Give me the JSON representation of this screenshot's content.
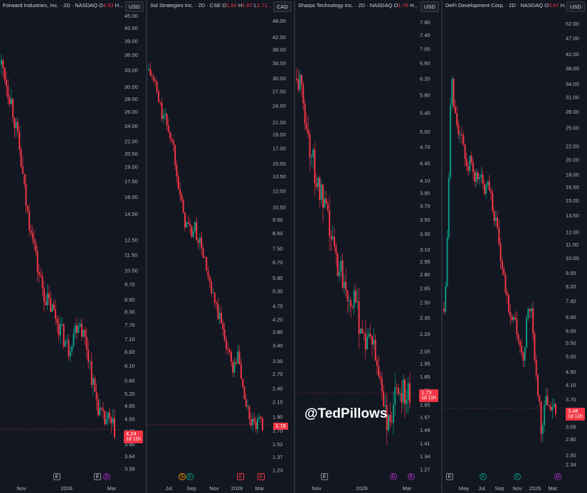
{
  "watermark": "@TedPillows",
  "colors": {
    "up": "#089981",
    "down": "#f23645",
    "bg": "#131722",
    "axis_text": "#b2b5be"
  },
  "chart_data": [
    {
      "type": "candlestick",
      "title": "Forward Industries, Inc. · 2D · NASDAQ",
      "ohlc_header": {
        "o_label": "O",
        "o_value": "4.53",
        "h_label": "H..."
      },
      "currency": "USD",
      "scale": "log",
      "ylim": [
        3.3,
        45
      ],
      "y_ticks": [
        "45.00",
        "42.00",
        "39.00",
        "36.00",
        "33.00",
        "30.00",
        "28.00",
        "26.00",
        "24.00",
        "22.00",
        "20.50",
        "19.00",
        "17.50",
        "16.00",
        "14.50",
        "12.50",
        "11.50",
        "10.50",
        "9.70",
        "8.90",
        "8.30",
        "7.70",
        "7.10",
        "6.60",
        "6.10",
        "5.60",
        "5.20",
        "4.85",
        "4.50",
        "4.20",
        "3.90",
        "3.64",
        "3.39"
      ],
      "x_ticks": [
        "Nov",
        "2026",
        "Mar"
      ],
      "last_price": "4.24",
      "countdown": "1d 11h",
      "events": [
        "E",
        "E",
        "D"
      ],
      "close_path": [
        [
          0,
          34
        ],
        [
          0.02,
          33
        ],
        [
          0.05,
          30
        ],
        [
          0.08,
          28
        ],
        [
          0.11,
          25
        ],
        [
          0.14,
          22
        ],
        [
          0.17,
          19
        ],
        [
          0.2,
          16
        ],
        [
          0.23,
          14
        ],
        [
          0.26,
          13.5
        ],
        [
          0.3,
          10.8
        ],
        [
          0.33,
          10
        ],
        [
          0.36,
          9.2
        ],
        [
          0.39,
          8.8
        ],
        [
          0.42,
          8.5
        ],
        [
          0.45,
          8.2
        ],
        [
          0.48,
          7.8
        ],
        [
          0.51,
          7.4
        ],
        [
          0.54,
          7.0
        ],
        [
          0.57,
          6.7
        ],
        [
          0.6,
          7.2
        ],
        [
          0.63,
          7.6
        ],
        [
          0.66,
          8.0
        ],
        [
          0.69,
          7.4
        ],
        [
          0.72,
          6.9
        ],
        [
          0.75,
          6.2
        ],
        [
          0.78,
          5.4
        ],
        [
          0.81,
          5.0
        ],
        [
          0.84,
          4.6
        ],
        [
          0.87,
          4.4
        ],
        [
          0.9,
          4.5
        ],
        [
          0.93,
          4.3
        ],
        [
          0.96,
          4.24
        ]
      ]
    },
    {
      "type": "candlestick",
      "title": "Sol Strategies Inc. · 2D · CSE",
      "ohlc_header": {
        "o_label": "O",
        "o_value": "1.82",
        "h_label": "H",
        "h_value": "1.87",
        "l_label": "L",
        "l_value": "1.71..."
      },
      "currency": "CAD",
      "scale": "log",
      "ylim": [
        1.2,
        50
      ],
      "y_ticks": [
        "48.00",
        "42.00",
        "38.00",
        "34.00",
        "30.00",
        "27.00",
        "24.00",
        "21.00",
        "19.00",
        "17.00",
        "15.00",
        "13.50",
        "12.00",
        "10.50",
        "9.50",
        "8.50",
        "7.50",
        "6.70",
        "5.90",
        "5.30",
        "4.70",
        "4.20",
        "3.80",
        "3.40",
        "3.00",
        "2.70",
        "2.40",
        "2.15",
        "1.90",
        "1.70",
        "1.52",
        "1.37",
        "1.23"
      ],
      "x_ticks": [
        "Jul",
        "Sep",
        "Nov",
        "2026",
        "Mar"
      ],
      "last_price": "1.78",
      "events": [
        "S",
        "E",
        "E",
        "E"
      ],
      "close_path": [
        [
          0,
          32
        ],
        [
          0.03,
          30
        ],
        [
          0.06,
          28
        ],
        [
          0.09,
          24
        ],
        [
          0.12,
          22
        ],
        [
          0.15,
          21
        ],
        [
          0.18,
          19
        ],
        [
          0.21,
          17
        ],
        [
          0.24,
          14
        ],
        [
          0.27,
          11
        ],
        [
          0.3,
          9.5
        ],
        [
          0.33,
          9
        ],
        [
          0.36,
          8.5
        ],
        [
          0.39,
          8.8
        ],
        [
          0.42,
          8.0
        ],
        [
          0.45,
          7.5
        ],
        [
          0.48,
          6.5
        ],
        [
          0.51,
          5.5
        ],
        [
          0.54,
          5.0
        ],
        [
          0.57,
          4.6
        ],
        [
          0.6,
          4.2
        ],
        [
          0.63,
          3.8
        ],
        [
          0.66,
          3.4
        ],
        [
          0.69,
          3.0
        ],
        [
          0.72,
          2.8
        ],
        [
          0.75,
          3.2
        ],
        [
          0.78,
          2.6
        ],
        [
          0.81,
          2.2
        ],
        [
          0.84,
          1.95
        ],
        [
          0.87,
          1.8
        ],
        [
          0.9,
          1.75
        ],
        [
          0.93,
          1.8
        ],
        [
          0.96,
          1.78
        ]
      ]
    },
    {
      "type": "candlestick",
      "title": "Sharps Technology Inc. · 2D · NASDAQ",
      "ohlc_header": {
        "o_label": "O",
        "o_value": "1.76",
        "h_label": "H..."
      },
      "currency": "USD",
      "scale": "log",
      "ylim": [
        1.25,
        8
      ],
      "y_ticks": [
        "7.80",
        "7.40",
        "7.00",
        "6.60",
        "6.20",
        "5.80",
        "5.40",
        "5.00",
        "4.70",
        "4.40",
        "4.10",
        "3.90",
        "3.70",
        "3.50",
        "3.30",
        "3.10",
        "2.95",
        "2.80",
        "2.65",
        "2.50",
        "2.35",
        "2.20",
        "2.05",
        "1.95",
        "1.85",
        "1.75",
        "1.65",
        "1.57",
        "1.49",
        "1.41",
        "1.34",
        "1.27"
      ],
      "x_ticks": [
        "Nov",
        "2026",
        "Mar"
      ],
      "last_price": "1.73",
      "countdown": "1d 11h",
      "events": [
        "E",
        "D",
        "E"
      ],
      "close_path": [
        [
          0,
          6.2
        ],
        [
          0.03,
          6.0
        ],
        [
          0.06,
          5.6
        ],
        [
          0.09,
          5.0
        ],
        [
          0.12,
          4.6
        ],
        [
          0.15,
          4.3
        ],
        [
          0.18,
          4.0
        ],
        [
          0.21,
          3.8
        ],
        [
          0.24,
          3.6
        ],
        [
          0.27,
          3.4
        ],
        [
          0.3,
          3.2
        ],
        [
          0.33,
          3.0
        ],
        [
          0.36,
          2.9
        ],
        [
          0.39,
          2.8
        ],
        [
          0.42,
          2.7
        ],
        [
          0.45,
          2.6
        ],
        [
          0.48,
          2.5
        ],
        [
          0.51,
          2.4
        ],
        [
          0.54,
          2.3
        ],
        [
          0.57,
          2.2
        ],
        [
          0.6,
          2.1
        ],
        [
          0.63,
          2.2
        ],
        [
          0.66,
          2.0
        ],
        [
          0.69,
          1.9
        ],
        [
          0.72,
          1.8
        ],
        [
          0.75,
          1.6
        ],
        [
          0.78,
          1.5
        ],
        [
          0.81,
          1.6
        ],
        [
          0.84,
          1.7
        ],
        [
          0.87,
          1.75
        ],
        [
          0.9,
          1.78
        ],
        [
          0.93,
          1.74
        ],
        [
          0.96,
          1.73
        ]
      ]
    },
    {
      "type": "candlestick",
      "title": "DeFi Development Corp. · 2D · NASDAQ",
      "ohlc_header": {
        "o_label": "O",
        "o_value": "3.67",
        "h_label": "H..."
      },
      "currency": "USD",
      "scale": "log",
      "ylim": [
        2.2,
        55
      ],
      "y_ticks": [
        "52.00",
        "47.00",
        "42.00",
        "38.00",
        "34.00",
        "31.00",
        "28.00",
        "25.00",
        "22.00",
        "20.00",
        "18.00",
        "16.50",
        "15.00",
        "13.50",
        "12.00",
        "11.00",
        "10.00",
        "9.00",
        "8.20",
        "7.40",
        "6.60",
        "6.00",
        "5.50",
        "5.00",
        "4.50",
        "4.10",
        "3.70",
        "3.40",
        "3.05",
        "2.80",
        "2.50",
        "2.34"
      ],
      "x_ticks": [
        "May",
        "Jul",
        "Sep",
        "Nov",
        "2026",
        "Mar"
      ],
      "last_price": "3.48",
      "countdown": "1d 11h",
      "events": [
        "E",
        "E",
        "E",
        "E",
        "D"
      ],
      "close_path": [
        [
          0,
          7.0
        ],
        [
          0.02,
          9.5
        ],
        [
          0.04,
          18
        ],
        [
          0.06,
          38
        ],
        [
          0.08,
          30
        ],
        [
          0.1,
          28
        ],
        [
          0.12,
          25
        ],
        [
          0.14,
          22
        ],
        [
          0.16,
          24
        ],
        [
          0.19,
          18
        ],
        [
          0.22,
          20
        ],
        [
          0.25,
          17
        ],
        [
          0.28,
          18
        ],
        [
          0.31,
          17.5
        ],
        [
          0.34,
          16
        ],
        [
          0.37,
          18
        ],
        [
          0.4,
          15
        ],
        [
          0.43,
          13
        ],
        [
          0.46,
          11
        ],
        [
          0.49,
          9
        ],
        [
          0.52,
          7.8
        ],
        [
          0.55,
          7.0
        ],
        [
          0.58,
          6.6
        ],
        [
          0.61,
          6.0
        ],
        [
          0.64,
          5.2
        ],
        [
          0.67,
          5.0
        ],
        [
          0.7,
          6.5
        ],
        [
          0.73,
          7.2
        ],
        [
          0.76,
          5.0
        ],
        [
          0.79,
          4.0
        ],
        [
          0.82,
          3.0
        ],
        [
          0.85,
          3.6
        ],
        [
          0.88,
          3.7
        ],
        [
          0.91,
          3.5
        ],
        [
          0.94,
          3.48
        ]
      ]
    }
  ]
}
